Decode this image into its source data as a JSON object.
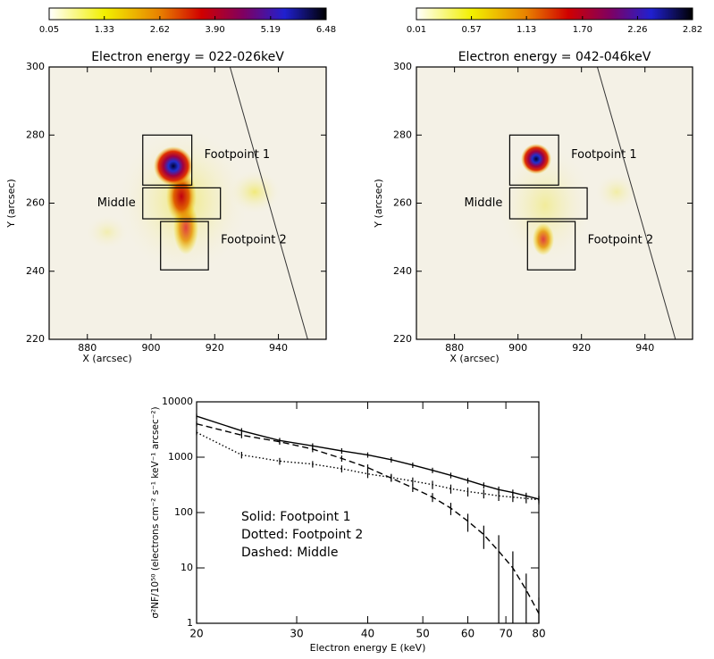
{
  "chart_data": [
    {
      "type": "heatmap",
      "title": "Electron energy = 022-026keV",
      "colorbar": {
        "lim": [
          0.05,
          6.48
        ],
        "ticks": [
          0.05,
          1.33,
          2.62,
          {
            "value": 3.9,
            "label": "3.90"
          },
          5.19,
          6.48
        ]
      },
      "xlim": [
        868,
        955
      ],
      "ylim": [
        220,
        300
      ],
      "xticks": [
        880,
        900,
        920,
        940
      ],
      "yticks": [
        220,
        240,
        260,
        280,
        300
      ],
      "xlabel": "X (arcsec)",
      "ylabel": "Y (arcsec)",
      "regions": [
        {
          "label": "Footpoint 1",
          "x": [
            897.4,
            912.8
          ],
          "y": [
            265.3,
            280
          ]
        },
        {
          "label": "Middle",
          "x": [
            897.4,
            921.8
          ],
          "y": [
            255.4,
            264.5
          ]
        },
        {
          "label": "Footpoint 2",
          "x": [
            903,
            918
          ],
          "y": [
            240.4,
            254.6
          ]
        }
      ],
      "curve": {
        "x": [
          924.8,
          949.2
        ],
        "y": [
          300,
          220
        ]
      }
    },
    {
      "type": "heatmap",
      "title": "Electron energy = 042-046keV",
      "colorbar": {
        "lim": [
          0.01,
          2.82
        ],
        "ticks": [
          0.01,
          0.57,
          1.13,
          {
            "value": 1.7,
            "label": "1.70"
          },
          2.26,
          2.82
        ]
      },
      "xlim": [
        868,
        955
      ],
      "ylim": [
        220,
        300
      ],
      "xticks": [
        880,
        900,
        920,
        940
      ],
      "yticks": [
        220,
        240,
        260,
        280,
        300
      ],
      "xlabel": "X (arcsec)",
      "ylabel": "Y (arcsec)",
      "regions": [
        {
          "label": "Footpoint 1",
          "x": [
            897.4,
            912.8
          ],
          "y": [
            265.3,
            280
          ]
        },
        {
          "label": "Middle",
          "x": [
            897.4,
            921.8
          ],
          "y": [
            255.4,
            264.5
          ]
        },
        {
          "label": "Footpoint 2",
          "x": [
            903,
            918
          ],
          "y": [
            240.4,
            254.6
          ]
        }
      ],
      "curve": {
        "x": [
          925,
          949.6
        ],
        "y": [
          300,
          220
        ]
      }
    },
    {
      "type": "line",
      "xlabel": "Electron energy E (keV)",
      "ylabel": "σ²NF/10⁵⁰ (electrons cm⁻² s⁻¹ keV⁻¹ arcsec⁻²)",
      "xscale": "log",
      "yscale": "log",
      "xlim": [
        20,
        80
      ],
      "ylim": [
        1,
        10000
      ],
      "xticks": [
        20,
        30,
        40,
        50,
        60,
        70,
        80
      ],
      "yticks": [
        1,
        10,
        100,
        1000,
        10000
      ],
      "x": [
        20,
        24,
        28,
        32,
        36,
        40,
        44,
        48,
        52,
        56,
        60,
        64,
        68,
        72,
        76,
        80
      ],
      "series": [
        {
          "name": "Solid: Footpoint 1",
          "color": "#000000",
          "linestyle": "solid",
          "values": [
            5500,
            3000,
            2000,
            1600,
            1300,
            1100,
            900,
            720,
            580,
            470,
            380,
            310,
            260,
            230,
            200,
            175
          ],
          "errors": [
            600,
            350,
            230,
            180,
            150,
            120,
            100,
            80,
            65,
            55,
            45,
            40,
            35,
            30,
            28,
            25
          ]
        },
        {
          "name": "Dotted: Footpoint 2",
          "color": "#000000",
          "linestyle": "dotted",
          "values": [
            2800,
            1100,
            850,
            750,
            620,
            500,
            430,
            370,
            320,
            270,
            240,
            220,
            200,
            190,
            180,
            170
          ],
          "errors": [
            300,
            150,
            120,
            100,
            90,
            80,
            70,
            60,
            55,
            50,
            45,
            40,
            38,
            35,
            33,
            30
          ]
        },
        {
          "name": "Dashed: Middle",
          "color": "#000000",
          "linestyle": "dashed",
          "values": [
            4000,
            2500,
            1900,
            1400,
            950,
            650,
            420,
            280,
            190,
            120,
            70,
            40,
            20,
            10,
            4,
            1.5
          ],
          "errors": [
            400,
            300,
            220,
            170,
            120,
            90,
            60,
            45,
            35,
            30,
            25,
            18,
            19,
            9.9,
            3.9,
            1.4
          ]
        }
      ]
    }
  ]
}
